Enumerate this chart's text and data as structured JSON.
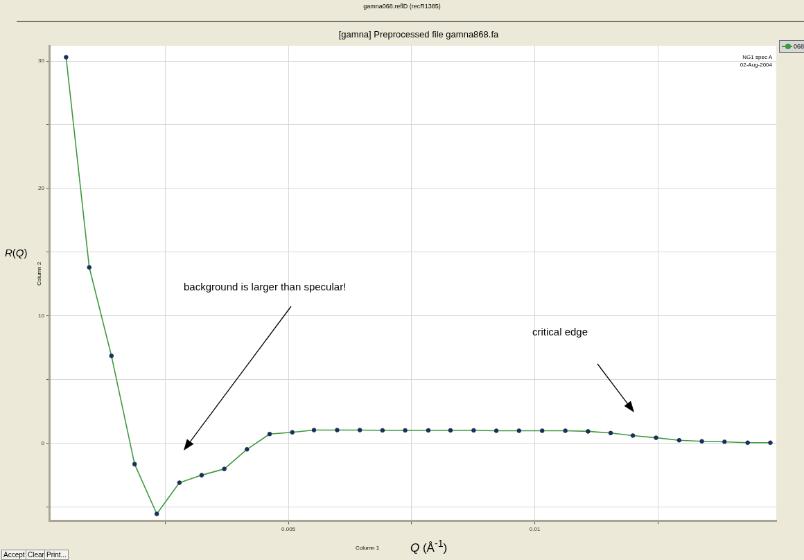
{
  "chart_data": {
    "type": "line",
    "title": "gamna068.reflD (recR1385)",
    "subtitle": "[gamna] Preprocessed file gamna868.fa",
    "xlabel": "Column 1",
    "ylabel": "Column 2",
    "x": [
      0.00049,
      0.00096,
      0.00141,
      0.00188,
      0.00233,
      0.00279,
      0.00324,
      0.0037,
      0.00416,
      0.00462,
      0.00508,
      0.00552,
      0.00599,
      0.00645,
      0.00691,
      0.00737,
      0.00784,
      0.00829,
      0.00876,
      0.00922,
      0.00968,
      0.01015,
      0.01062,
      0.01108,
      0.01154,
      0.01199,
      0.01246,
      0.01293,
      0.01339,
      0.01385,
      0.01432,
      0.01478
    ],
    "series": [
      {
        "name": "068",
        "color": "#3c9a3c",
        "values": [
          30.3,
          13.8,
          6.85,
          -1.65,
          -5.56,
          -3.11,
          -2.52,
          -2.03,
          -0.49,
          0.71,
          0.85,
          1.02,
          1.02,
          1.02,
          1.0,
          1.0,
          1.0,
          1.0,
          1.0,
          0.97,
          0.97,
          0.97,
          0.97,
          0.92,
          0.79,
          0.59,
          0.42,
          0.22,
          0.14,
          0.1,
          0.03,
          0.03
        ]
      }
    ],
    "marker": "circle",
    "line_style": "solid",
    "grid": true,
    "legend": "top right",
    "xlim": [
      0.00016,
      0.0149
    ],
    "xticks": [
      {
        "value": 0.0025,
        "label": null
      },
      0.005,
      {
        "value": 0.0075,
        "label": null
      },
      0.01,
      {
        "value": 0.0125,
        "label": null
      }
    ],
    "ylim": [
      -6.1,
      31.2
    ],
    "yticks": [
      {
        "value": -5,
        "label": null
      },
      0,
      {
        "value": 5,
        "label": null
      },
      10,
      {
        "value": 15,
        "label": null
      },
      20,
      {
        "value": 25,
        "label": null
      },
      30
    ],
    "annotations": [
      "NG1 spec A",
      "02-Aug-2004",
      "R(Q)",
      "Q (Å$^{-1}$)",
      "background is larger than specular!",
      "critical edge",
      "Accept",
      "Clear",
      "Print..."
    ]
  }
}
